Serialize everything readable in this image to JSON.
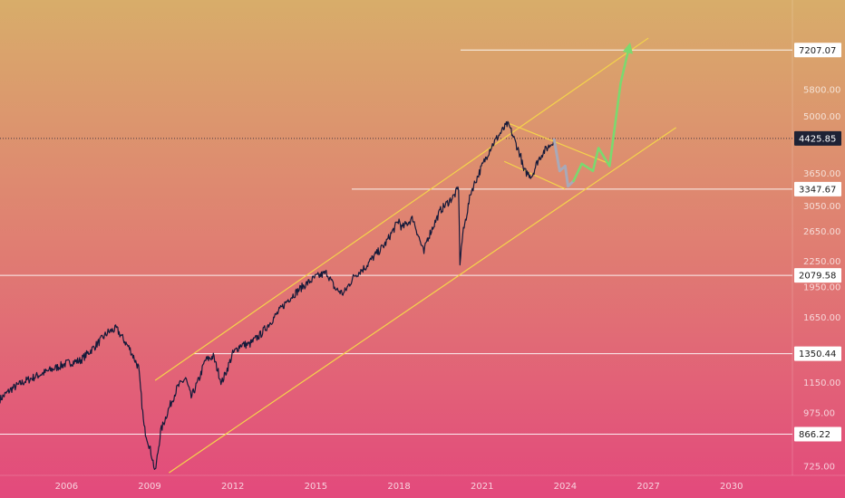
{
  "chart_data": {
    "type": "line",
    "title": "",
    "xlabel": "",
    "ylabel": "",
    "scale": "log",
    "ylim": [
      690,
      9500
    ],
    "xlim": [
      2003.6,
      2032.2
    ],
    "yticks": [
      {
        "value": 725,
        "label": "725.00"
      },
      {
        "value": 975,
        "label": "975.00"
      },
      {
        "value": 1150,
        "label": "1150.00"
      },
      {
        "value": 1650,
        "label": "1650.00"
      },
      {
        "value": 1950,
        "label": "1950.00"
      },
      {
        "value": 2250,
        "label": "2250.00"
      },
      {
        "value": 2650,
        "label": "2650.00"
      },
      {
        "value": 3050,
        "label": "3050.00"
      },
      {
        "value": 3650,
        "label": "3650.00"
      },
      {
        "value": 5000,
        "label": "5000.00"
      },
      {
        "value": 5800,
        "label": "5800.00"
      }
    ],
    "xticks": [
      {
        "value": 2006,
        "label": "2006"
      },
      {
        "value": 2009,
        "label": "2009"
      },
      {
        "value": 2012,
        "label": "2012"
      },
      {
        "value": 2015,
        "label": "2015"
      },
      {
        "value": 2018,
        "label": "2018"
      },
      {
        "value": 2021,
        "label": "2021"
      },
      {
        "value": 2024,
        "label": "2024"
      },
      {
        "value": 2027,
        "label": "2027"
      },
      {
        "value": 2030,
        "label": "2030"
      }
    ],
    "price_series": {
      "x": [
        2003.6,
        2004.0,
        2004.5,
        2005.0,
        2005.5,
        2006.0,
        2006.5,
        2007.0,
        2007.5,
        2007.8,
        2008.0,
        2008.3,
        2008.6,
        2008.8,
        2008.95,
        2009.1,
        2009.2,
        2009.4,
        2009.7,
        2010.0,
        2010.3,
        2010.5,
        2010.8,
        2011.0,
        2011.3,
        2011.6,
        2011.8,
        2012.0,
        2012.3,
        2012.6,
        2013.0,
        2013.5,
        2014.0,
        2014.5,
        2015.0,
        2015.4,
        2015.7,
        2016.0,
        2016.4,
        2016.8,
        2017.0,
        2017.5,
        2018.0,
        2018.1,
        2018.5,
        2018.9,
        2019.0,
        2019.5,
        2020.0,
        2020.15,
        2020.2,
        2020.3,
        2020.6,
        2021.0,
        2021.3,
        2021.6,
        2021.9,
        2022.0,
        2022.4,
        2022.5,
        2022.8,
        2023.0,
        2023.2,
        2023.5,
        2023.6
      ],
      "y": [
        1050,
        1110,
        1160,
        1200,
        1240,
        1280,
        1300,
        1400,
        1520,
        1550,
        1480,
        1380,
        1250,
        900,
        830,
        760,
        700,
        880,
        1000,
        1120,
        1180,
        1060,
        1180,
        1300,
        1330,
        1150,
        1240,
        1350,
        1420,
        1420,
        1500,
        1650,
        1820,
        1950,
        2060,
        2110,
        1930,
        1880,
        2080,
        2180,
        2270,
        2470,
        2820,
        2700,
        2850,
        2350,
        2520,
        2980,
        3230,
        3380,
        2237,
        2600,
        3300,
        3800,
        4200,
        4500,
        4780,
        4700,
        4000,
        3700,
        3600,
        3900,
        4100,
        4300,
        4425
      ]
    },
    "last_price": {
      "value": 4425.85,
      "label": "4425.85"
    },
    "horizontal_levels": [
      {
        "value": 7207.07,
        "label": "7207.07"
      },
      {
        "value": 3347.67,
        "label": "3347.67"
      },
      {
        "value": 2079.58,
        "label": "2079.58"
      },
      {
        "value": 1350.44,
        "label": "1350.44"
      },
      {
        "value": 866.22,
        "label": "866.22"
      }
    ],
    "channel_upper": {
      "x": [
        2009.2,
        2027.0
      ],
      "y": [
        1165,
        7700
      ]
    },
    "channel_lower": {
      "x": [
        2009.7,
        2028.0
      ],
      "y": [
        700,
        4700
      ]
    },
    "wedge_top": {
      "x": [
        2022.0,
        2025.6
      ],
      "y": [
        4800,
        3850
      ]
    },
    "wedge_bottom": {
      "x": [
        2021.8,
        2024.0
      ],
      "y": [
        3900,
        3350
      ]
    },
    "projection_down": {
      "x": [
        2023.6,
        2023.8,
        2024.0,
        2024.1,
        2024.3
      ],
      "y": [
        4400,
        3700,
        3800,
        3400,
        3500
      ]
    },
    "projection_up": {
      "x": [
        2024.3,
        2024.6,
        2025.0,
        2025.2,
        2025.6,
        2026.0,
        2026.3
      ],
      "y": [
        3500,
        3850,
        3700,
        4200,
        3800,
        6000,
        7300
      ]
    },
    "colors": {
      "bg_top": "#d8ad6a",
      "bg_mid": "#e07d72",
      "bg_bottom": "#e3497c",
      "price": "#151a3a",
      "channel": "#f4d44b",
      "level": "#ffffff",
      "projection_up": "#7bd96f",
      "projection_down": "#a9a9b8",
      "last_badge": "#1e2235"
    }
  }
}
